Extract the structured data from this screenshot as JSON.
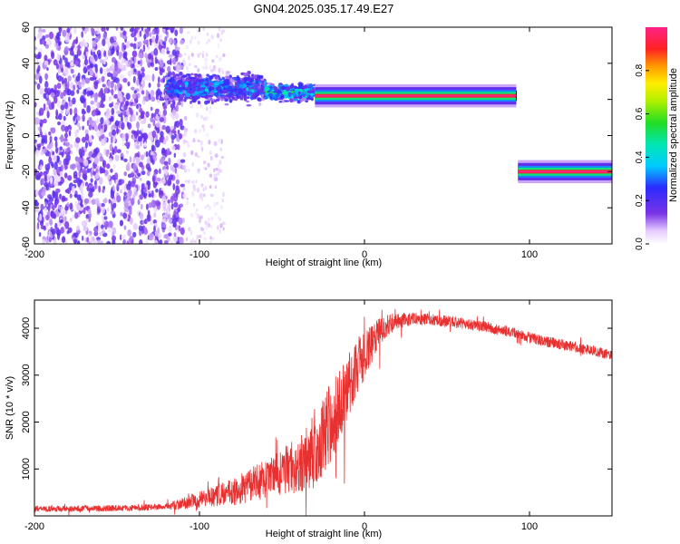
{
  "title": "GN04.2025.035.17.49.E27",
  "colors": {
    "snr_line": "#e83030",
    "speckle": "#7a33e6",
    "ridge_core": "#ff2060"
  },
  "chart_data": [
    {
      "type": "heatmap",
      "xlabel": "Height of straight line (km)",
      "ylabel": "Frequency (Hz)",
      "xlim": [
        -200,
        150
      ],
      "ylim": [
        -60,
        60
      ],
      "xticks": [
        -200,
        -100,
        0,
        100
      ],
      "yticks": [
        60,
        40,
        20,
        0,
        -20,
        -40,
        -60
      ],
      "grid": false,
      "colorbar": {
        "label": "Normalized spectral amplitude",
        "range": [
          0,
          1
        ],
        "ticks": [
          0.0,
          0.2,
          0.4,
          0.6,
          0.8
        ],
        "colormap": "rainbow (white-violet-blue-cyan-green-yellow-red-magenta)"
      },
      "features": [
        {
          "kind": "broadband noise speckle",
          "x_range": [
            -200,
            -110
          ],
          "y_range": [
            -60,
            60
          ],
          "amplitude": 0.2
        },
        {
          "kind": "scattered speckle",
          "x_range": [
            -110,
            -85
          ],
          "y_range": [
            -60,
            60
          ],
          "amplitude": 0.08
        },
        {
          "kind": "dispersed band",
          "x_range": [
            -120,
            -60
          ],
          "y_center": 26,
          "y_halfwidth": 10,
          "amplitude": 0.35
        },
        {
          "kind": "dispersed band",
          "x_range": [
            -60,
            -30
          ],
          "y_center": 24,
          "y_halfwidth": 6,
          "amplitude": 0.45
        },
        {
          "kind": "tonal line",
          "x_range": [
            -30,
            92
          ],
          "y_center": 22,
          "y_halfwidth": 2,
          "amplitude": 0.9
        },
        {
          "kind": "tonal line",
          "x_range": [
            93,
            150
          ],
          "y_center": -20,
          "y_halfwidth": 2,
          "amplitude": 0.9
        }
      ]
    },
    {
      "type": "line",
      "xlabel": "Height of straight line (km)",
      "ylabel": "SNR (10 * v/v)",
      "xlim": [
        -200,
        150
      ],
      "ylim": [
        0,
        4600
      ],
      "xticks": [
        -200,
        -100,
        0,
        100
      ],
      "yticks": [
        1000,
        2000,
        3000,
        4000
      ],
      "grid": false,
      "series": [
        {
          "envelope": {
            "x": [
              -200,
              -180,
              -160,
              -140,
              -120,
              -110,
              -100,
              -90,
              -80,
              -70,
              -60,
              -50,
              -40,
              -30,
              -25,
              -20,
              -15,
              -10,
              -5,
              0,
              5,
              10,
              15,
              20,
              25,
              30,
              40,
              50,
              60,
              70,
              80,
              90,
              100,
              110,
              120,
              130,
              140,
              150
            ],
            "y": [
              150,
              150,
              160,
              170,
              200,
              260,
              350,
              420,
              520,
              640,
              780,
              920,
              1100,
              1400,
              1700,
              2000,
              2400,
              2800,
              3100,
              3400,
              3700,
              3950,
              4100,
              4150,
              4180,
              4200,
              4180,
              4150,
              4100,
              4050,
              3980,
              3900,
              3800,
              3720,
              3650,
              3580,
              3500,
              3420
            ]
          },
          "noise_amplitude": {
            "x": [
              -200,
              -120,
              -100,
              -80,
              -60,
              -40,
              -30,
              -20,
              -10,
              0,
              10,
              20,
              40,
              80,
              150
            ],
            "y": [
              60,
              70,
              180,
              300,
              420,
              600,
              800,
              900,
              700,
              500,
              300,
              160,
              120,
              120,
              110
            ]
          }
        }
      ]
    }
  ]
}
